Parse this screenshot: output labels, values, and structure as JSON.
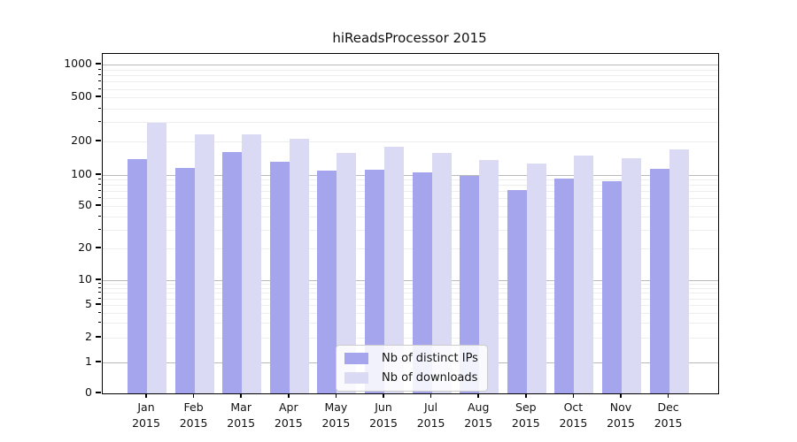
{
  "chart_data": {
    "type": "bar",
    "title": "hiReadsProcessor 2015",
    "categories": [
      {
        "month": "Jan",
        "year": "2015"
      },
      {
        "month": "Feb",
        "year": "2015"
      },
      {
        "month": "Mar",
        "year": "2015"
      },
      {
        "month": "Apr",
        "year": "2015"
      },
      {
        "month": "May",
        "year": "2015"
      },
      {
        "month": "Jun",
        "year": "2015"
      },
      {
        "month": "Jul",
        "year": "2015"
      },
      {
        "month": "Aug",
        "year": "2015"
      },
      {
        "month": "Sep",
        "year": "2015"
      },
      {
        "month": "Oct",
        "year": "2015"
      },
      {
        "month": "Nov",
        "year": "2015"
      },
      {
        "month": "Dec",
        "year": "2015"
      }
    ],
    "series": [
      {
        "name": "Nb of distinct IPs",
        "color": "#a5a5ee",
        "values": [
          139,
          114,
          160,
          131,
          108,
          110,
          104,
          98,
          71,
          91,
          86,
          113
        ]
      },
      {
        "name": "Nb of downloads",
        "color": "#dadaf5",
        "values": [
          295,
          232,
          232,
          212,
          156,
          178,
          158,
          136,
          126,
          149,
          142,
          168
        ]
      }
    ],
    "y_axis": {
      "ticks": [
        0,
        1,
        2,
        5,
        10,
        20,
        50,
        100,
        200,
        500,
        1000
      ],
      "scale": "symlog",
      "range": [
        0,
        1500
      ]
    },
    "x_axis": {
      "label": "",
      "tick_format": "month over year"
    },
    "grid": true,
    "legend_position": "lower center",
    "colors": {
      "major_grid": "#b9b9b9",
      "minor_grid": "#ededed",
      "axis": "#000000",
      "background": "#ffffff"
    }
  }
}
